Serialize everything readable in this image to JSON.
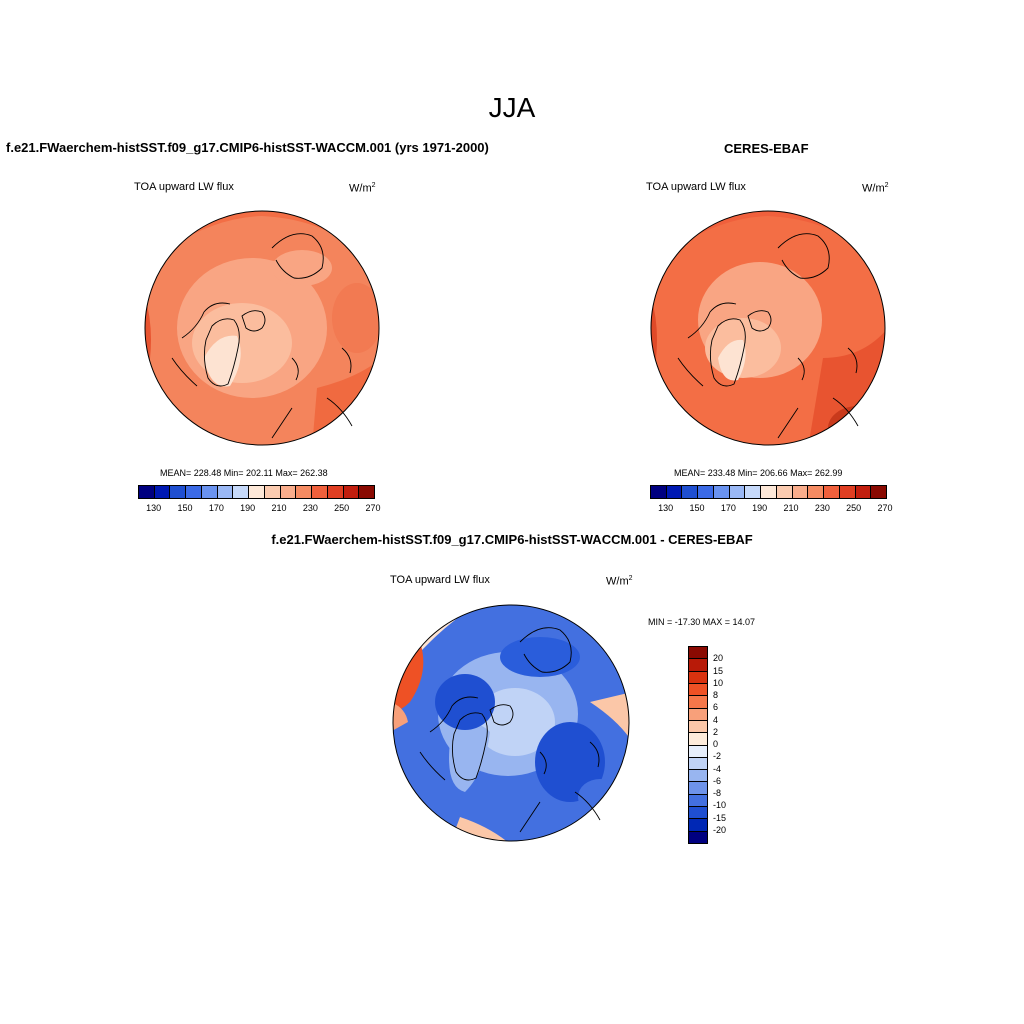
{
  "season": "JJA",
  "panels": {
    "model": {
      "title": "f.e21.FWaerchem-histSST.f09_g17.CMIP6-histSST-WACCM.001 (yrs 1971-2000)",
      "variable": "TOA upward LW flux",
      "units_base": "W/m",
      "units_exp": "2",
      "stats": "MEAN= 228.48  Min= 202.11  Max= 262.38"
    },
    "obs": {
      "title": "CERES-EBAF",
      "variable": "TOA upward LW flux",
      "units_base": "W/m",
      "units_exp": "2",
      "stats": "MEAN= 233.48  Min= 206.66  Max= 262.99"
    },
    "diff": {
      "title": "f.e21.FWaerchem-histSST.f09_g17.CMIP6-histSST-WACCM.001 - CERES-EBAF",
      "variable": "TOA upward LW flux",
      "units_base": "W/m",
      "units_exp": "2",
      "stats": "MIN = -17.30 MAX =  14.07"
    }
  },
  "colorbar_abs": {
    "colors": [
      "#000080",
      "#0019b3",
      "#1f4fd1",
      "#3b6ae6",
      "#6a93f0",
      "#9ab8f5",
      "#c6d9fa",
      "#fde8d8",
      "#fbcbb0",
      "#f9ad8c",
      "#f58b62",
      "#f0603c",
      "#e03e22",
      "#c21e0e",
      "#8a0a02"
    ],
    "tick_labels": [
      "130",
      "150",
      "170",
      "190",
      "210",
      "230",
      "250",
      "270"
    ]
  },
  "colorbar_diff": {
    "colors": [
      "#8a0a02",
      "#b81a08",
      "#d8320f",
      "#ee5125",
      "#f5774a",
      "#f8a07a",
      "#fbc7a8",
      "#fdebda",
      "#e6eefb",
      "#c0d3f6",
      "#98b5f0",
      "#6e93ea",
      "#4370e0",
      "#1f4fd1",
      "#0028b5",
      "#000080"
    ],
    "tick_labels": [
      "20",
      "15",
      "10",
      "8",
      "6",
      "4",
      "2",
      "0",
      "-2",
      "-4",
      "-6",
      "-8",
      "-10",
      "-15",
      "-20"
    ]
  }
}
